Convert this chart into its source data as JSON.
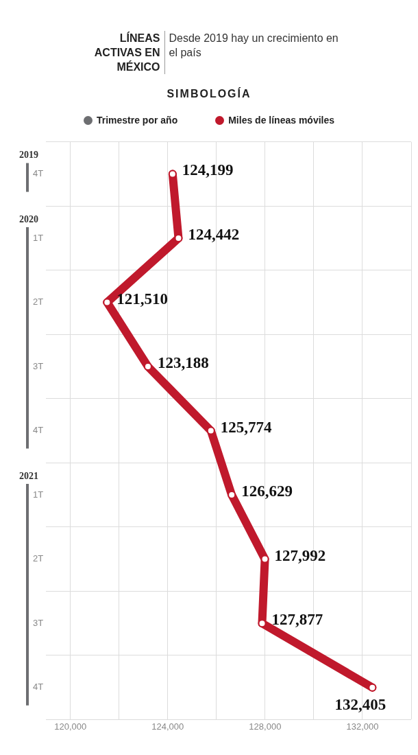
{
  "chart_data": {
    "type": "line",
    "title": "LÍNEAS ACTIVAS EN MÉXICO",
    "subtitle": "Desde 2019 hay un crecimiento en el país",
    "legend_title": "SIMBOLOGÍA",
    "legend": "top",
    "categories": [
      "4T",
      "1T",
      "2T",
      "3T",
      "4T",
      "1T",
      "2T",
      "3T",
      "4T"
    ],
    "series": [
      {
        "name": "Miles de líneas móviles",
        "color": "#c0192c",
        "values": [
          124199,
          124442,
          121510,
          123188,
          125774,
          126629,
          127992,
          127877,
          132405
        ]
      }
    ],
    "orientation": "horizontal",
    "value_labels": [
      "124,199",
      "124,442",
      "121,510",
      "123,188",
      "125,774",
      "126,629",
      "127,992",
      "127,877",
      "132,405"
    ],
    "marker": "circle",
    "grid": true,
    "xlim": [
      119000,
      134000
    ],
    "xticks": [
      {
        "value": 120000,
        "label": "120,000"
      },
      {
        "value": 122000,
        "label": null
      },
      {
        "value": 124000,
        "label": "124,000"
      },
      {
        "value": 126000,
        "label": null
      },
      {
        "value": 128000,
        "label": "128,000"
      },
      {
        "value": 130000,
        "label": null
      },
      {
        "value": 132000,
        "label": "132,000"
      },
      {
        "value": 134000,
        "label": null
      }
    ],
    "annotations": [
      "Trimestre por año",
      "2019",
      "2020",
      "2021"
    ]
  }
}
